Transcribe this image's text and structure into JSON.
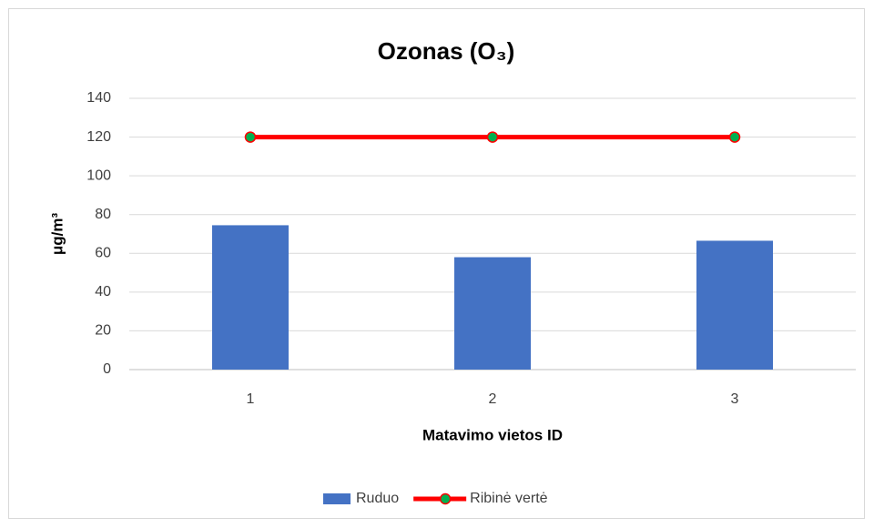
{
  "chart_data": {
    "type": "bar",
    "title": "Ozonas (O₃)",
    "ylabel": "μg/m³",
    "xlabel": "Matavimo vietos ID",
    "categories": [
      "1",
      "2",
      "3"
    ],
    "series": [
      {
        "name": "Ruduo",
        "type": "bar",
        "color": "#4472c4",
        "values": [
          74.5,
          58,
          66.5
        ]
      },
      {
        "name": "Ribinė vertė",
        "type": "line",
        "color": "#ff0000",
        "marker_color": "#00b050",
        "values": [
          120,
          120,
          120
        ]
      }
    ],
    "ylim": [
      0,
      140
    ],
    "yticks": [
      0,
      20,
      40,
      60,
      80,
      100,
      120,
      140
    ],
    "grid": true,
    "legend": "bottom"
  }
}
